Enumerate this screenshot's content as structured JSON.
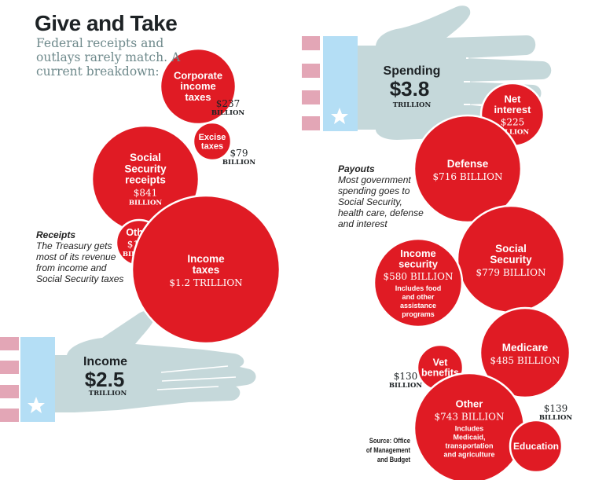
{
  "header": {
    "title": "Give and Take",
    "subtitle": "Federal receipts and outlays rarely match. A current breakdown:"
  },
  "colors": {
    "bubble": "#e01b24",
    "hand": "#c5d8da",
    "cuff": "#b4def5",
    "stripe": "#e3a6b6",
    "text_dark": "#1d2225",
    "subtitle": "#6f8a8c"
  },
  "receipts_note": {
    "heading": "Receipts",
    "body": "The Treasury gets most of its revenue from income and Social Security taxes"
  },
  "payouts_note": {
    "heading": "Payouts",
    "body": "Most government spending goes to Social Security, health care, defense and interest"
  },
  "source": "Source: Office of Management and Budget",
  "chart_data": [
    {
      "type": "bubble",
      "title": "Income",
      "total_label": "$2.5",
      "total_unit": "TRILLION",
      "total_billions": 2500,
      "unit": "billions of dollars",
      "series": [
        {
          "name": "Corporate income taxes",
          "lines": [
            "Corporate",
            "income",
            "taxes"
          ],
          "value": 237,
          "value_label": "$237",
          "unit_label": "BILLION",
          "label_outside": true
        },
        {
          "name": "Excise taxes",
          "lines": [
            "Excise",
            "taxes"
          ],
          "value": 79,
          "value_label": "$79",
          "unit_label": "BILLION",
          "label_outside": true
        },
        {
          "name": "Social Security receipts",
          "lines": [
            "Social",
            "Security",
            "receipts"
          ],
          "value": 841,
          "value_label": "$841",
          "unit_label": "BILLION",
          "label_outside": false
        },
        {
          "name": "Other",
          "lines": [
            "Other"
          ],
          "value": 147,
          "value_label": "$147",
          "unit_label": "BILLION",
          "label_outside": false
        },
        {
          "name": "Income taxes",
          "lines": [
            "Income",
            "taxes"
          ],
          "value": 1200,
          "value_label": "$1.2 TRILLION",
          "unit_label": "",
          "label_outside": false
        }
      ]
    },
    {
      "type": "bubble",
      "title": "Spending",
      "total_label": "$3.8",
      "total_unit": "TRILLION",
      "total_billions": 3800,
      "unit": "billions of dollars",
      "series": [
        {
          "name": "Net interest",
          "lines": [
            "Net",
            "interest"
          ],
          "value": 225,
          "value_label": "$225",
          "unit_label": "BILLION",
          "label_outside": false
        },
        {
          "name": "Defense",
          "lines": [
            "Defense"
          ],
          "value": 716,
          "value_label": "$716 BILLION",
          "unit_label": "",
          "label_outside": false
        },
        {
          "name": "Social Security",
          "lines": [
            "Social",
            "Security"
          ],
          "value": 779,
          "value_label": "$779 BILLION",
          "unit_label": "",
          "label_outside": false
        },
        {
          "name": "Income security",
          "lines": [
            "Income",
            "security"
          ],
          "value": 580,
          "value_label": "$580 BILLION",
          "unit_label": "",
          "note": [
            "Includes food",
            "and other",
            "assistance",
            "programs"
          ],
          "label_outside": false
        },
        {
          "name": "Medicare",
          "lines": [
            "Medicare"
          ],
          "value": 485,
          "value_label": "$485 BILLION",
          "unit_label": "",
          "label_outside": false
        },
        {
          "name": "Vet benefits",
          "lines": [
            "Vet",
            "benefits"
          ],
          "value": 130,
          "value_label": "$130",
          "unit_label": "BILLION",
          "label_outside": true
        },
        {
          "name": "Other",
          "lines": [
            "Other"
          ],
          "value": 743,
          "value_label": "$743 BILLION",
          "unit_label": "",
          "note": [
            "Includes",
            "Medicaid,",
            "transportation",
            "and agriculture"
          ],
          "label_outside": false
        },
        {
          "name": "Education",
          "lines": [
            "Education"
          ],
          "value": 139,
          "value_label": "$139",
          "unit_label": "BILLION",
          "label_outside": true
        }
      ]
    }
  ]
}
